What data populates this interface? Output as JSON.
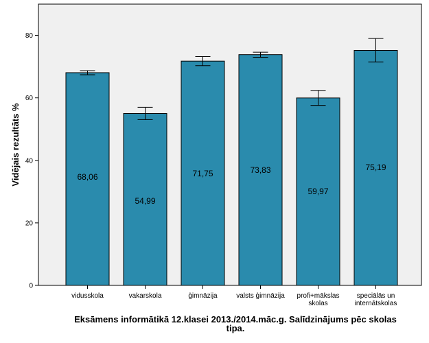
{
  "chart_data": {
    "type": "bar",
    "categories": [
      [
        "vidusskola"
      ],
      [
        "vakarskola"
      ],
      [
        "ģimnāzija"
      ],
      [
        "valsts ģimnāzija"
      ],
      [
        "profi+mākslas",
        "skolas"
      ],
      [
        "speciālās un",
        "internātskolas"
      ]
    ],
    "values": [
      68.06,
      54.99,
      71.75,
      73.83,
      59.97,
      75.19
    ],
    "value_labels": [
      "68,06",
      "54,99",
      "71,75",
      "73,83",
      "59,97",
      "75,19"
    ],
    "error_bars": [
      {
        "low": 67.4,
        "high": 68.7
      },
      {
        "low": 53.0,
        "high": 57.0
      },
      {
        "low": 70.3,
        "high": 73.2
      },
      {
        "low": 73.0,
        "high": 74.6
      },
      {
        "low": 57.6,
        "high": 62.4
      },
      {
        "low": 71.5,
        "high": 79.0
      }
    ],
    "ylabel": "Vidējais rezultāts %",
    "xlabel_lines": [
      "Eksāmens informātikā 12.klasei 2013./2014.māc.g. Salīdzinājums pēc skolas",
      "tipa."
    ],
    "ylim": [
      0,
      90
    ],
    "yticks": [
      0,
      20,
      40,
      60,
      80
    ],
    "grid": false,
    "colors": {
      "bar": "#2a8bad",
      "plot_background": "#f0f0f0",
      "axis": "#000000"
    }
  }
}
